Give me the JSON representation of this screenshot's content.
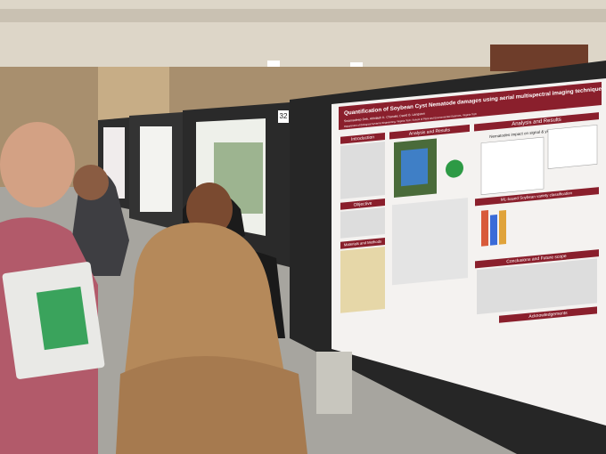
{
  "poster": {
    "board_number": "32",
    "title": "Quantification of Soybean Cyst Nematode damages using aerial multispectral imaging technique",
    "authors": "Swarnadeep Deb, Abhilash K. Chandel, David B. Langston",
    "affiliation": "Department of Biological Systems Engineering, Virginia Tech; School of Plant and Environmental Sciences, Virginia Tech",
    "sections": {
      "introduction": "Introduction",
      "objective": "Objective",
      "methods": "Materials and Methods",
      "results": "Analysis and Results",
      "results_right": "Analysis and Results",
      "nematodes": "Nematodes impact on signal & yield",
      "ml": "ML-based Soybean variety classification",
      "conclusions": "Conclusions and Future scope",
      "acknowledgements": "Acknowledgements"
    }
  }
}
